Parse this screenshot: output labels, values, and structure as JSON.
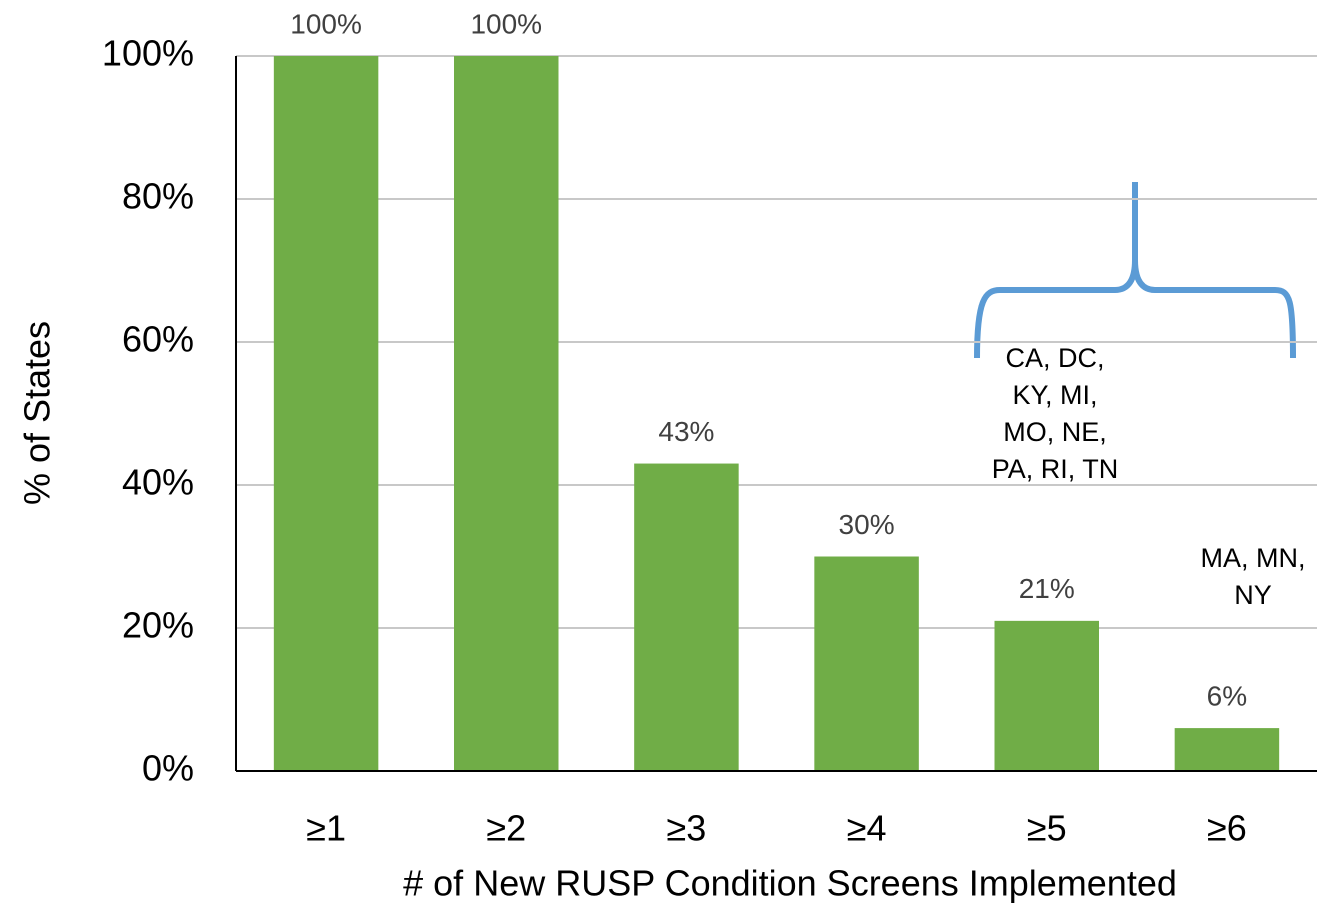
{
  "chart_data": {
    "type": "bar",
    "categories": [
      "≥1",
      "≥2",
      "≥3",
      "≥4",
      "≥5",
      "≥6"
    ],
    "values": [
      100,
      100,
      43,
      30,
      21,
      6
    ],
    "value_labels": [
      "100%",
      "100%",
      "43%",
      "30%",
      "21%",
      "6%"
    ],
    "color": "#70ad47",
    "ylim": [
      0,
      100
    ],
    "yticks": [
      {
        "value": 0,
        "label": "0%"
      },
      {
        "value": 20,
        "label": "20%"
      },
      {
        "value": 40,
        "label": "40%"
      },
      {
        "value": 60,
        "label": "60%"
      },
      {
        "value": 80,
        "label": "80%"
      },
      {
        "value": 100,
        "label": "100%"
      }
    ],
    "grid": true,
    "ylabel": "% of States",
    "xlabel": "# of New RUSP Condition Screens Implemented",
    "annotations": [
      {
        "lines": [
          "CA, DC,",
          "KY, MI,",
          "MO, NE,",
          "PA, RI, TN"
        ]
      },
      {
        "lines": [
          "MA, MN,",
          "NY"
        ]
      }
    ]
  }
}
